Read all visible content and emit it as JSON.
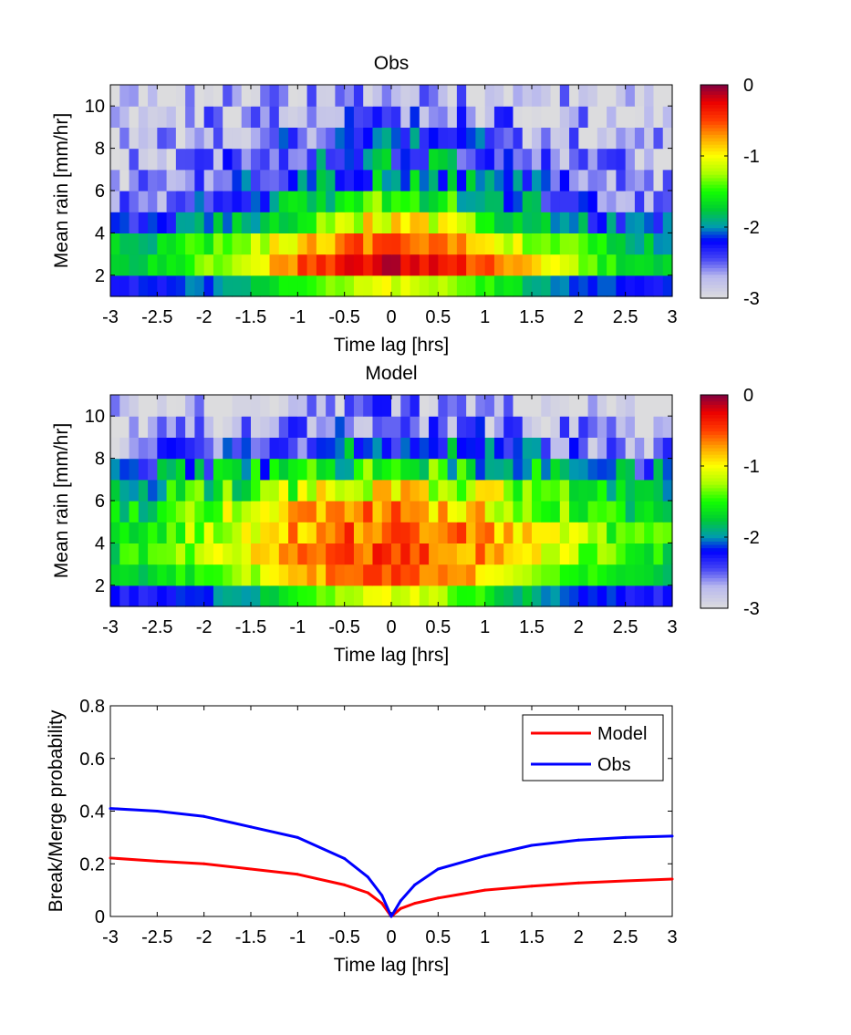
{
  "chart_data": [
    {
      "type": "heatmap",
      "title": "Obs",
      "xlabel": "Time lag [hrs]",
      "ylabel": "Mean rain [mm/hr]",
      "xlim": [
        -3,
        3
      ],
      "ylim": [
        1,
        11
      ],
      "x_ticks": [
        -3,
        -2.5,
        -2,
        -1.5,
        -1,
        -0.5,
        0,
        0.5,
        1,
        1.5,
        2,
        2.5,
        3
      ],
      "y_ticks": [
        2,
        4,
        6,
        8,
        10
      ],
      "colorbar": {
        "range": [
          -3,
          0
        ],
        "ticks": [
          0,
          -1,
          -2,
          -3
        ]
      },
      "grid": "60 time-lag columns x 10 rain bins (1-11 mm/hr)",
      "row_centers": [
        1.5,
        2.5,
        3.5,
        4.5,
        5.5,
        6.5,
        7.5,
        8.5,
        9.5,
        10.5
      ],
      "row_peak_values": [
        -1.1,
        -0.2,
        -0.55,
        -1.0,
        -1.5,
        -1.9,
        -2.05,
        -2.3,
        -2.5,
        -2.7
      ],
      "row_edge_values": [
        -2.3,
        -1.9,
        -1.9,
        -2.3,
        -2.7,
        -2.9,
        -2.9,
        -3.0,
        -3.0,
        -3.0
      ],
      "row_widths_hrs": [
        1.1,
        1.35,
        1.25,
        1.1,
        1.3,
        1.4,
        1.4,
        1.5,
        1.5,
        1.5
      ]
    },
    {
      "type": "heatmap",
      "title": "Model",
      "xlabel": "Time lag [hrs]",
      "ylabel": "Mean rain [mm/hr]",
      "xlim": [
        -3,
        3
      ],
      "ylim": [
        1,
        11
      ],
      "x_ticks": [
        -3,
        -2.5,
        -2,
        -1.5,
        -1,
        -0.5,
        0,
        0.5,
        1,
        1.5,
        2,
        2.5,
        3
      ],
      "y_ticks": [
        2,
        4,
        6,
        8,
        10
      ],
      "colorbar": {
        "range": [
          -3,
          0
        ],
        "ticks": [
          0,
          -1,
          -2,
          -3
        ]
      },
      "grid": "60 time-lag columns x 10 rain bins (1-11 mm/hr)",
      "row_centers": [
        1.5,
        2.5,
        3.5,
        4.5,
        5.5,
        6.5,
        7.5,
        8.5,
        9.5,
        10.5
      ],
      "row_peak_values": [
        -1.1,
        -0.55,
        -0.5,
        -0.55,
        -0.75,
        -1.05,
        -1.6,
        -2.1,
        -2.45,
        -2.65
      ],
      "row_edge_values": [
        -2.3,
        -1.9,
        -1.8,
        -1.8,
        -1.9,
        -2.0,
        -2.3,
        -2.8,
        -3.0,
        -3.0
      ],
      "row_widths_hrs": [
        1.0,
        1.3,
        1.5,
        1.6,
        1.6,
        1.5,
        1.5,
        1.5,
        1.5,
        1.5
      ]
    },
    {
      "type": "line",
      "xlabel": "Time lag [hrs]",
      "ylabel": "Break/Merge probability",
      "xlim": [
        -3,
        3
      ],
      "ylim": [
        0,
        0.8
      ],
      "x_ticks": [
        -3,
        -2.5,
        -2,
        -1.5,
        -1,
        -0.5,
        0,
        0.5,
        1,
        1.5,
        2,
        2.5,
        3
      ],
      "y_ticks": [
        0,
        0.2,
        0.4,
        0.6,
        0.8
      ],
      "legend_position": "top-right",
      "series": [
        {
          "name": "Model",
          "color": "#ff0000",
          "x": [
            -3,
            -2.5,
            -2,
            -1.5,
            -1,
            -0.5,
            -0.25,
            -0.1,
            0,
            0.1,
            0.25,
            0.5,
            1,
            1.5,
            2,
            2.5,
            3
          ],
          "y": [
            0.222,
            0.21,
            0.2,
            0.18,
            0.16,
            0.12,
            0.09,
            0.05,
            0.0,
            0.03,
            0.05,
            0.07,
            0.1,
            0.115,
            0.127,
            0.135,
            0.142
          ]
        },
        {
          "name": "Obs",
          "color": "#0000ff",
          "x": [
            -3,
            -2.5,
            -2,
            -1.5,
            -1,
            -0.5,
            -0.25,
            -0.1,
            0,
            0.1,
            0.25,
            0.5,
            1,
            1.5,
            2,
            2.5,
            3
          ],
          "y": [
            0.41,
            0.4,
            0.38,
            0.34,
            0.3,
            0.22,
            0.15,
            0.08,
            0.0,
            0.06,
            0.12,
            0.18,
            0.23,
            0.27,
            0.29,
            0.3,
            0.305
          ]
        }
      ]
    }
  ]
}
